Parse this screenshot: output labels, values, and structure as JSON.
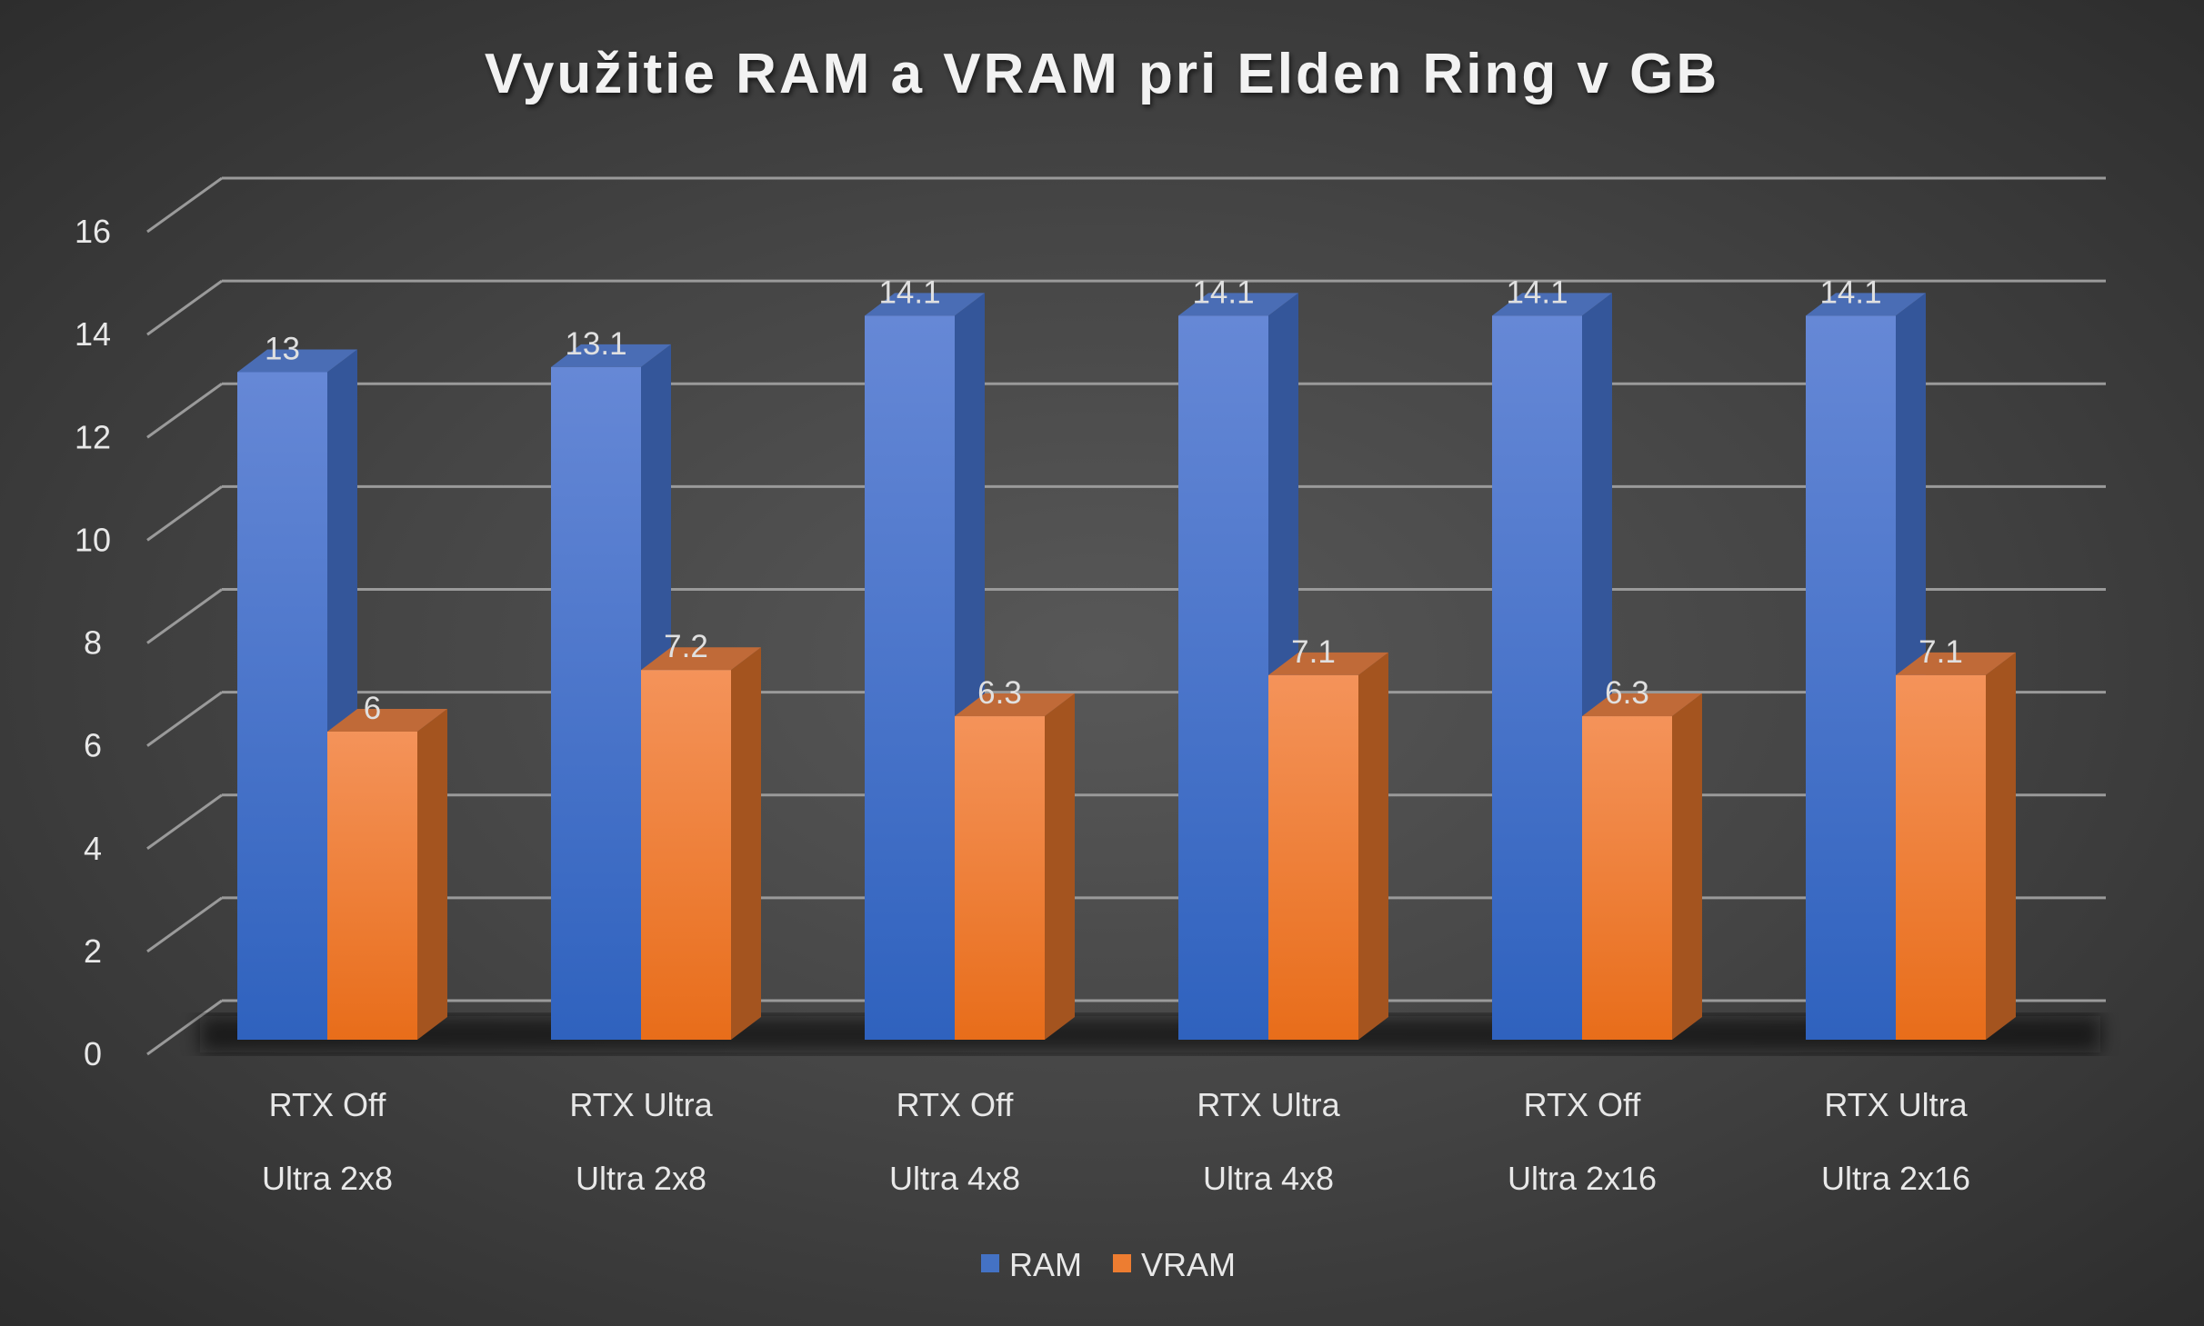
{
  "chart_data": {
    "type": "bar",
    "title": "Využitie RAM a VRAM pri Elden Ring v GB",
    "categories": [
      [
        "RTX Off",
        "Ultra 2x8"
      ],
      [
        "RTX Ultra",
        "Ultra 2x8"
      ],
      [
        "RTX Off",
        "Ultra 4x8"
      ],
      [
        "RTX Ultra",
        "Ultra 4x8"
      ],
      [
        "RTX Off",
        "Ultra 2x16"
      ],
      [
        "RTX Ultra",
        "Ultra 2x16"
      ]
    ],
    "series": [
      {
        "name": "RAM",
        "values": [
          13,
          13.1,
          14.1,
          14.1,
          14.1,
          14.1
        ],
        "color": "#4472c4"
      },
      {
        "name": "VRAM",
        "values": [
          6,
          7.2,
          6.3,
          7.1,
          6.3,
          7.1
        ],
        "color": "#ed7d31"
      }
    ],
    "yticks": [
      "0",
      "2",
      "4",
      "6",
      "8",
      "10",
      "12",
      "14",
      "16"
    ],
    "ylim": [
      0,
      16
    ],
    "xlabel": "",
    "ylabel": "",
    "grid": true,
    "legend": "bottom-center",
    "style": "3d-clustered-column"
  }
}
